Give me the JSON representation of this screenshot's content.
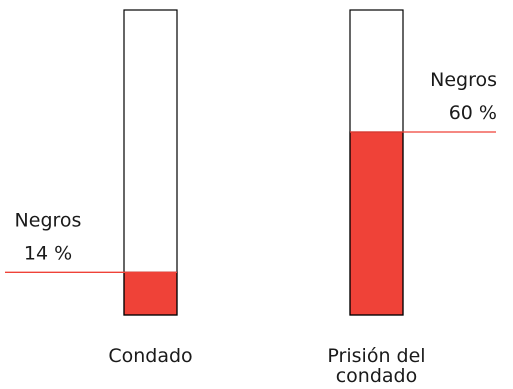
{
  "chart_data": {
    "type": "bar",
    "orientation": "vertical",
    "categories": [
      "Condado",
      "Prisión del condado"
    ],
    "category_lines": [
      [
        "Condado"
      ],
      [
        "Prisión del",
        "condado"
      ]
    ],
    "series": [
      {
        "values": [
          14,
          60
        ],
        "labels": [
          "Negros",
          "Negros"
        ],
        "value_labels": [
          "14 %",
          "60 %"
        ]
      }
    ],
    "ylim": [
      0,
      100
    ],
    "unit": "%",
    "grid": false,
    "colors": {
      "fill": "#ef4238",
      "leader": "#ef4238",
      "outline": "#000000",
      "text": "#1a1a1a"
    }
  }
}
